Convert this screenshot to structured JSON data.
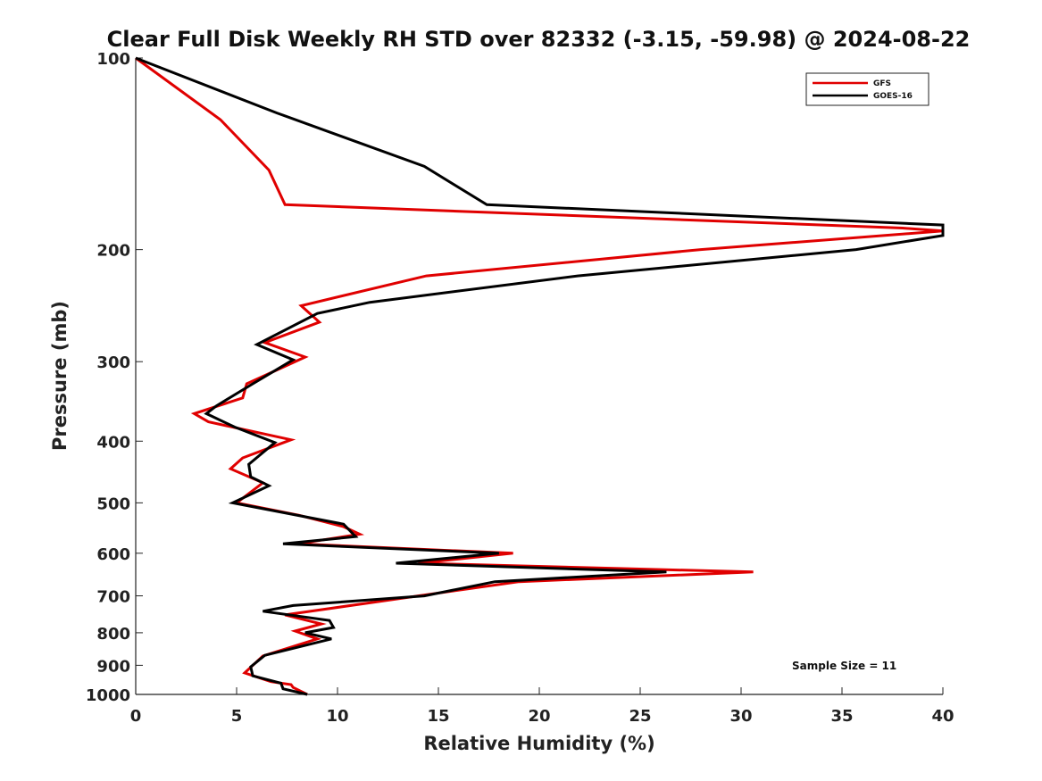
{
  "chart_data": {
    "type": "line",
    "title": "Clear Full Disk Weekly RH STD over 82332 (-3.15, -59.98) @ 2024-08-22",
    "xlabel": "Relative Humidity (%)",
    "ylabel": "Pressure (mb)",
    "xlim": [
      0,
      40
    ],
    "ylim": [
      100,
      1000
    ],
    "y_scale": "log",
    "y_reversed": true,
    "x_ticks": [
      "0",
      "5",
      "10",
      "15",
      "20",
      "25",
      "30",
      "35",
      "40"
    ],
    "y_ticks": [
      "100",
      "200",
      "300",
      "400",
      "500",
      "600",
      "700",
      "800",
      "900",
      "1000"
    ],
    "grid": false,
    "legend_position": "top-right",
    "annotation": "Sample Size = 11",
    "series": [
      {
        "name": "GFS",
        "color": "#e00000",
        "points": [
          [
            0,
            100
          ],
          [
            4.2,
            125
          ],
          [
            6.6,
            150
          ],
          [
            7.4,
            170
          ],
          [
            38.0,
            185
          ],
          [
            40,
            187
          ],
          [
            28.0,
            200
          ],
          [
            14.4,
            220
          ],
          [
            8.2,
            245
          ],
          [
            9.1,
            260
          ],
          [
            6.4,
            280
          ],
          [
            8.4,
            295
          ],
          [
            5.5,
            325
          ],
          [
            5.3,
            342
          ],
          [
            2.9,
            362
          ],
          [
            3.6,
            373
          ],
          [
            7.7,
            398
          ],
          [
            5.3,
            425
          ],
          [
            4.7,
            442
          ],
          [
            6.3,
            465
          ],
          [
            5.0,
            500
          ],
          [
            8.1,
            523
          ],
          [
            10.3,
            545
          ],
          [
            11.1,
            560
          ],
          [
            8.0,
            580
          ],
          [
            18.7,
            600
          ],
          [
            14.0,
            622
          ],
          [
            30.6,
            642
          ],
          [
            19.0,
            665
          ],
          [
            14.0,
            700
          ],
          [
            7.4,
            750
          ],
          [
            9.2,
            775
          ],
          [
            7.9,
            795
          ],
          [
            9.0,
            818
          ],
          [
            6.3,
            870
          ],
          [
            5.4,
            925
          ],
          [
            6.7,
            955
          ],
          [
            7.7,
            965
          ],
          [
            7.8,
            975
          ],
          [
            8.5,
            1000
          ]
        ]
      },
      {
        "name": "GOES-16",
        "color": "#000000",
        "points": [
          [
            0,
            100
          ],
          [
            7.0,
            122
          ],
          [
            14.3,
            148
          ],
          [
            17.4,
            170
          ],
          [
            40,
            183
          ],
          [
            40,
            190
          ],
          [
            35.7,
            200
          ],
          [
            21.9,
            220
          ],
          [
            11.6,
            242
          ],
          [
            9.0,
            252
          ],
          [
            6.0,
            282
          ],
          [
            7.8,
            298
          ],
          [
            5.8,
            325
          ],
          [
            4.0,
            352
          ],
          [
            3.5,
            362
          ],
          [
            4.9,
            380
          ],
          [
            6.9,
            402
          ],
          [
            5.6,
            435
          ],
          [
            5.7,
            455
          ],
          [
            6.6,
            470
          ],
          [
            4.8,
            500
          ],
          [
            10.3,
            540
          ],
          [
            10.9,
            565
          ],
          [
            7.3,
            580
          ],
          [
            18.0,
            600
          ],
          [
            12.9,
            622
          ],
          [
            26.3,
            642
          ],
          [
            17.8,
            665
          ],
          [
            14.3,
            700
          ],
          [
            7.8,
            725
          ],
          [
            6.3,
            740
          ],
          [
            9.6,
            765
          ],
          [
            9.8,
            785
          ],
          [
            8.4,
            800
          ],
          [
            9.7,
            818
          ],
          [
            6.4,
            868
          ],
          [
            5.7,
            905
          ],
          [
            5.8,
            935
          ],
          [
            7.2,
            960
          ],
          [
            7.3,
            980
          ],
          [
            8.5,
            1000
          ]
        ]
      }
    ]
  }
}
